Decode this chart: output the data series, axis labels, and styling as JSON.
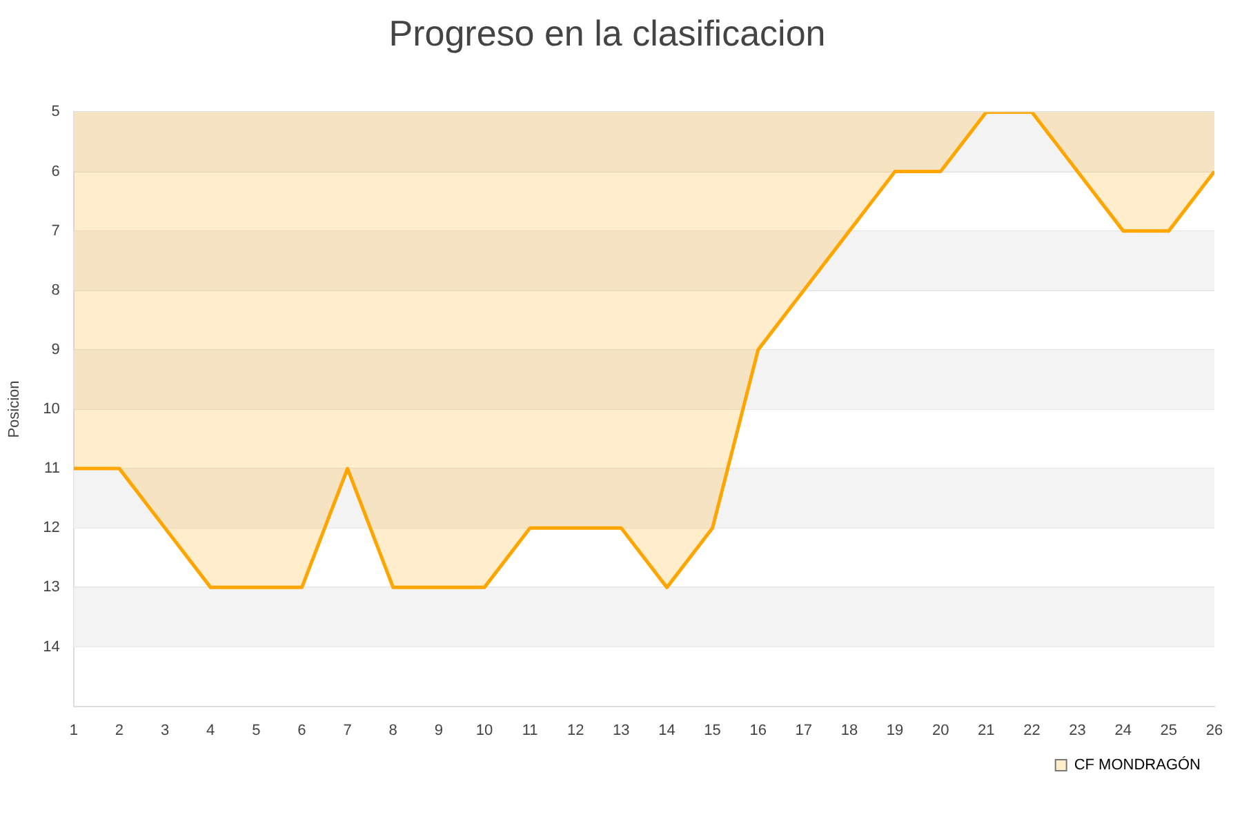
{
  "chart_data": {
    "type": "area",
    "title": "Progreso en la clasificacion",
    "ylabel": "Posicion",
    "x": [
      1,
      2,
      3,
      4,
      5,
      6,
      7,
      8,
      9,
      10,
      11,
      12,
      13,
      14,
      15,
      16,
      17,
      18,
      19,
      20,
      21,
      22,
      23,
      24,
      25,
      26
    ],
    "xlim": [
      1,
      26
    ],
    "xticks": [
      1,
      2,
      3,
      4,
      5,
      6,
      7,
      8,
      9,
      10,
      11,
      12,
      13,
      14,
      15,
      16,
      17,
      18,
      19,
      20,
      21,
      22,
      23,
      24,
      25,
      26
    ],
    "series": [
      {
        "name": "CF MONDRAGÓN",
        "color": "#ffa500",
        "values": [
          11,
          11,
          12,
          13,
          13,
          13,
          11,
          13,
          13,
          13,
          12,
          12,
          12,
          13,
          12,
          9,
          8,
          7,
          6,
          6,
          5,
          5,
          6,
          7,
          7,
          6
        ]
      }
    ],
    "ylim": [
      15,
      5
    ],
    "yticks": [
      5,
      6,
      7,
      8,
      9,
      10,
      11,
      12,
      13,
      14
    ],
    "grid": "y",
    "legend": "bottom right",
    "marker": "none"
  }
}
